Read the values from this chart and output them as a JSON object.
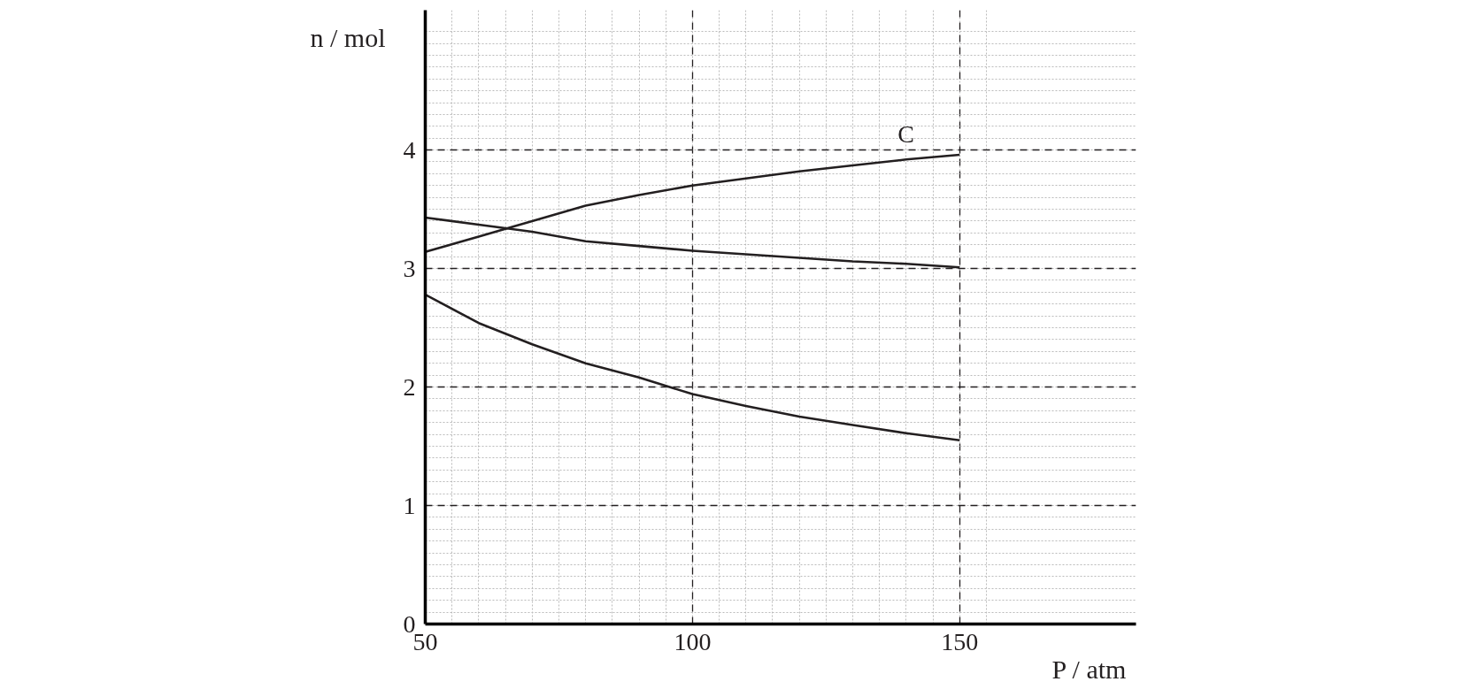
{
  "chart_data": {
    "type": "line",
    "xlabel": "P / atm",
    "ylabel": "n / mol",
    "x": [
      50,
      60,
      70,
      80,
      90,
      100,
      110,
      120,
      130,
      140,
      150
    ],
    "series": [
      {
        "name": "C",
        "color": "#231f20",
        "values": [
          3.14,
          3.27,
          3.4,
          3.53,
          3.62,
          3.7,
          3.76,
          3.82,
          3.87,
          3.92,
          3.96
        ]
      },
      {
        "color": "#231f20",
        "values": [
          3.43,
          3.37,
          3.31,
          3.23,
          3.19,
          3.15,
          3.12,
          3.09,
          3.06,
          3.04,
          3.01
        ]
      },
      {
        "color": "#231f20",
        "values": [
          2.78,
          2.54,
          2.36,
          2.2,
          2.08,
          1.94,
          1.84,
          1.75,
          1.68,
          1.61,
          1.55
        ]
      }
    ],
    "xlim": [
      50,
      183
    ],
    "ylim": [
      0,
      5.18
    ],
    "xticks": [
      50,
      100,
      150
    ],
    "yticks": [
      0,
      1,
      2,
      3,
      4
    ],
    "grid": true,
    "marker": "none",
    "line_style": "solid"
  }
}
